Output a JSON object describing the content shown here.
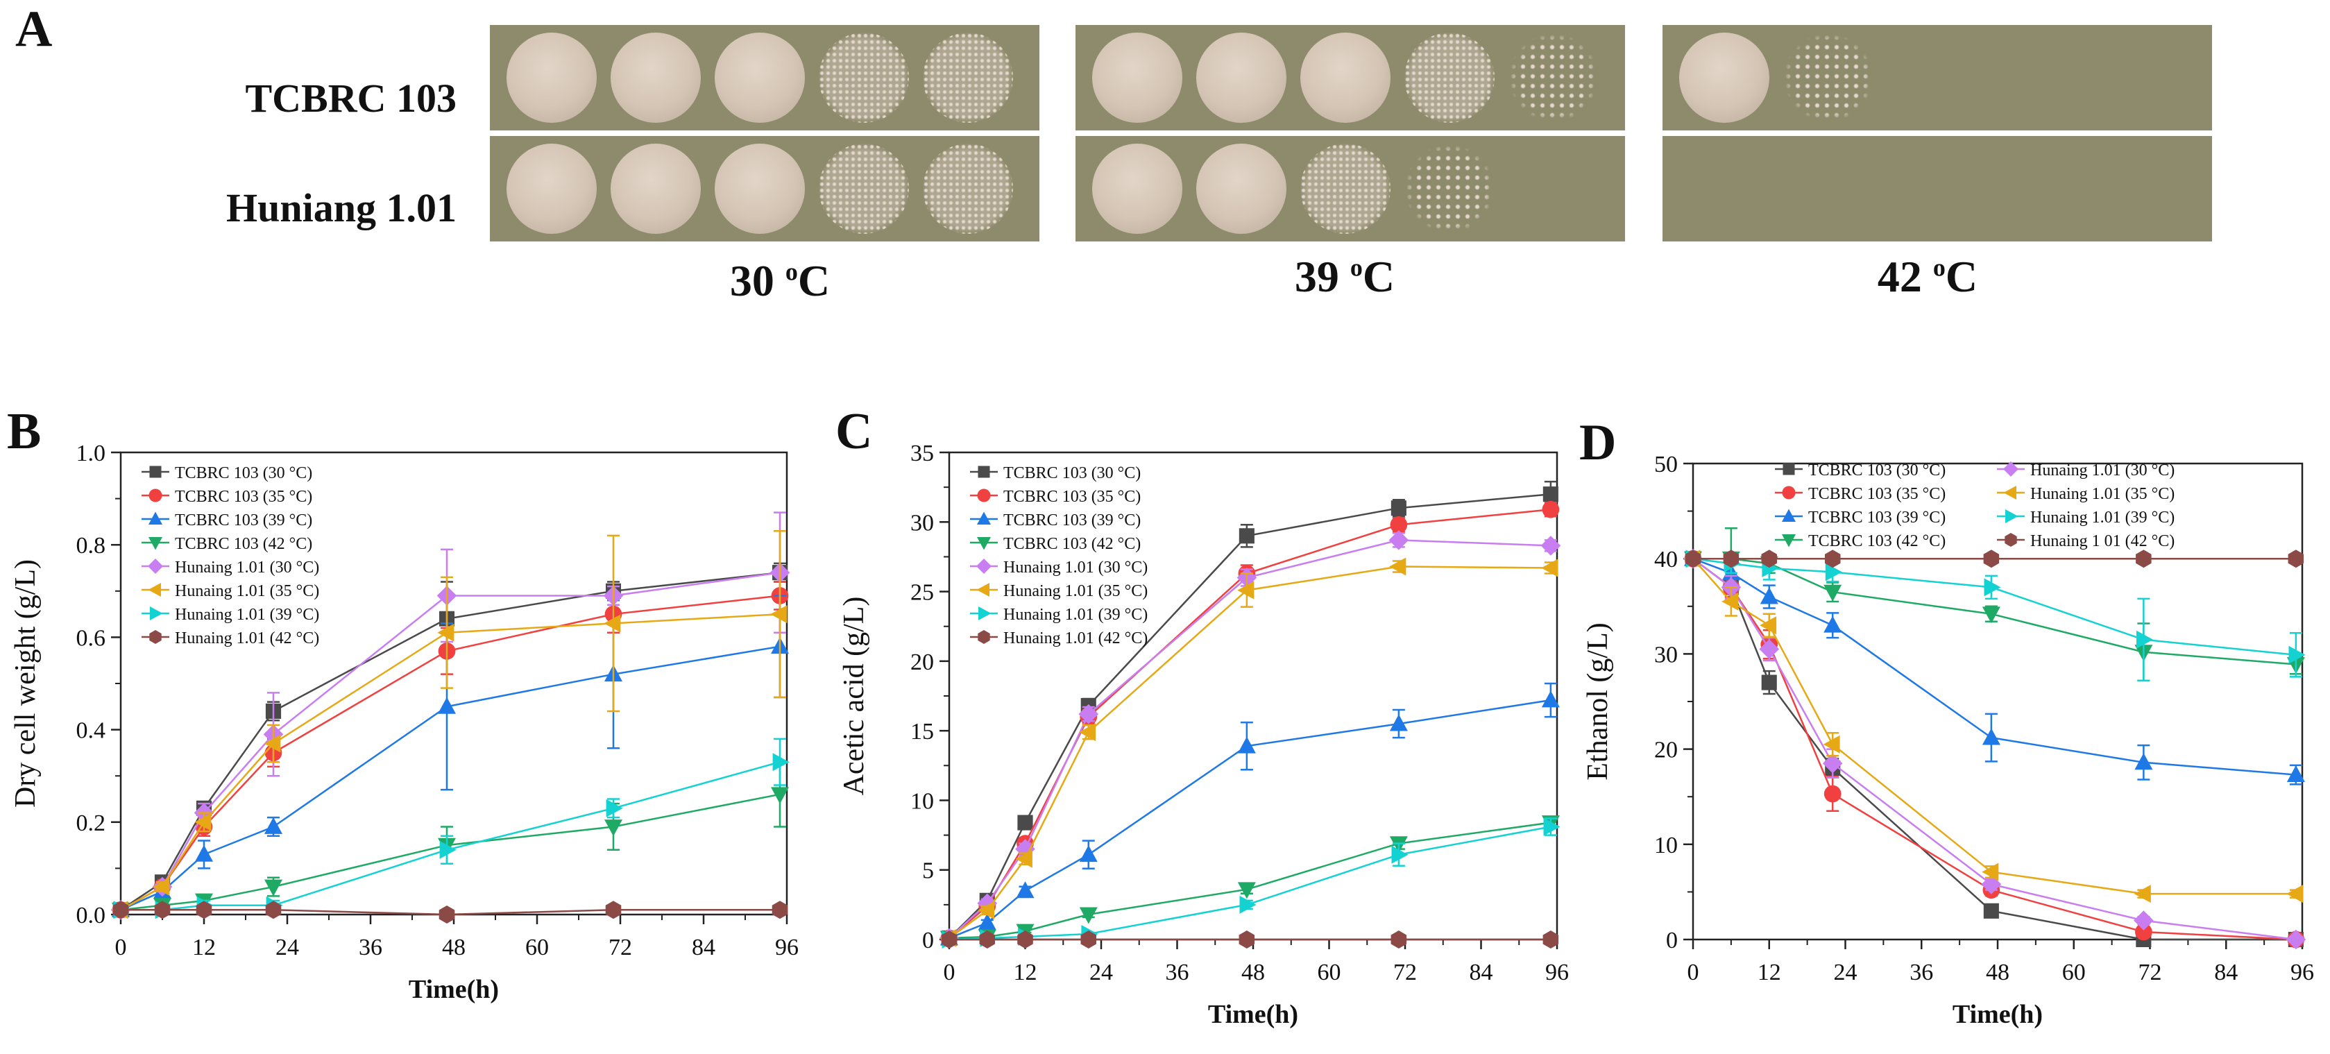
{
  "panel_a": {
    "letter": "A",
    "strains": [
      "TCBRC 103",
      "Huniang 1.01"
    ],
    "temperatures": [
      {
        "value": "30 ",
        "unit_sup": "o",
        "unit": "C"
      },
      {
        "value": "39 ",
        "unit_sup": "o",
        "unit": "C"
      },
      {
        "value": "42 ",
        "unit_sup": "o",
        "unit": "C"
      }
    ],
    "growth_levels": {
      "description_levels": "0=no growth, 1=faint, 2=sparse colonies, 3=dense colonies, 4=lawn",
      "rows": [
        [
          [
            4,
            4,
            4,
            3,
            3
          ],
          [
            4,
            4,
            4,
            3,
            2
          ],
          [
            4,
            2,
            0,
            0,
            0
          ]
        ],
        [
          [
            4,
            4,
            4,
            3,
            3
          ],
          [
            4,
            4,
            3,
            2,
            0
          ],
          [
            0,
            0,
            0,
            0,
            0
          ]
        ]
      ]
    },
    "colors": {
      "plate": "#8e8a6c",
      "lawn": "#d4c4b4",
      "colony": "#e4d9cc"
    }
  },
  "series_styles": [
    {
      "marker": "square",
      "color": "#4a4a4a"
    },
    {
      "marker": "circle",
      "color": "#f04040"
    },
    {
      "marker": "triangle-up",
      "color": "#1e78e6"
    },
    {
      "marker": "triangle-down",
      "color": "#1eaa64"
    },
    {
      "marker": "diamond",
      "color": "#c87ef0"
    },
    {
      "marker": "triangle-left",
      "color": "#e6a814"
    },
    {
      "marker": "triangle-right",
      "color": "#14d2d2"
    },
    {
      "marker": "hexagon",
      "color": "#8c4a46"
    }
  ],
  "chart_data": [
    {
      "id": "B",
      "letter": "B",
      "type": "line",
      "xlabel": "Time(h)",
      "ylabel": "Dry cell weight (g/L)",
      "xlim": [
        0,
        96
      ],
      "ylim": [
        0,
        1.0
      ],
      "xticks": [
        0,
        12,
        24,
        36,
        48,
        60,
        72,
        84,
        96
      ],
      "yticks": [
        0.0,
        0.2,
        0.4,
        0.6,
        0.8,
        1.0
      ],
      "ytick_labels": [
        "0.0",
        "0.2",
        "0.4",
        "0.6",
        "0.8",
        "1.0"
      ],
      "legend_columns": 1,
      "legend_position": "top-left",
      "x": [
        0,
        6,
        12,
        22,
        47,
        71,
        95
      ],
      "series": [
        {
          "name": "TCBRC 103 (30 °C)",
          "values": [
            0.01,
            0.07,
            0.23,
            0.44,
            0.64,
            0.7,
            0.74
          ],
          "errors": [
            0.005,
            0.01,
            0.01,
            0.02,
            0.08,
            0.02,
            0.02
          ]
        },
        {
          "name": "TCBRC 103 (35 °C)",
          "values": [
            0.01,
            0.06,
            0.19,
            0.35,
            0.57,
            0.65,
            0.69
          ],
          "errors": [
            0.005,
            0.01,
            0.02,
            0.03,
            0.05,
            0.04,
            0.03
          ]
        },
        {
          "name": "TCBRC 103 (39 °C)",
          "values": [
            0.01,
            0.05,
            0.13,
            0.19,
            0.45,
            0.52,
            0.58
          ],
          "errors": [
            0.005,
            0.01,
            0.03,
            0.02,
            0.18,
            0.16,
            0.11
          ]
        },
        {
          "name": "TCBRC 103 (42 °C)",
          "values": [
            0.01,
            0.02,
            0.03,
            0.06,
            0.15,
            0.19,
            0.26
          ],
          "errors": [
            0.005,
            0.005,
            0.01,
            0.02,
            0.04,
            0.05,
            0.07
          ]
        },
        {
          "name": "Hunaing 1.01 (30 °C)",
          "values": [
            0.01,
            0.06,
            0.22,
            0.39,
            0.69,
            0.69,
            0.74
          ],
          "errors": [
            0.005,
            0.01,
            0.02,
            0.09,
            0.1,
            0.02,
            0.13
          ]
        },
        {
          "name": "Hunaing 1.01 (35 °C)",
          "values": [
            0.01,
            0.06,
            0.2,
            0.37,
            0.61,
            0.63,
            0.65
          ],
          "errors": [
            0.005,
            0.01,
            0.02,
            0.04,
            0.12,
            0.19,
            0.18
          ]
        },
        {
          "name": "Hunaing 1.01 (39 °C)",
          "values": [
            0.01,
            0.01,
            0.02,
            0.02,
            0.14,
            0.23,
            0.33
          ],
          "errors": [
            0.003,
            0.005,
            0.01,
            0.01,
            0.03,
            0.02,
            0.05
          ]
        },
        {
          "name": "Hunaing 1.01 (42 °C)",
          "values": [
            0.01,
            0.01,
            0.01,
            0.01,
            0.0,
            0.01,
            0.01
          ],
          "errors": [
            0.003,
            0.003,
            0.003,
            0.003,
            0.003,
            0.003,
            0.003
          ]
        }
      ]
    },
    {
      "id": "C",
      "letter": "C",
      "type": "line",
      "xlabel": "Time(h)",
      "ylabel": "Acetic acid (g/L)",
      "xlim": [
        0,
        96
      ],
      "ylim": [
        0,
        35
      ],
      "xticks": [
        0,
        12,
        24,
        36,
        48,
        60,
        72,
        84,
        96
      ],
      "yticks": [
        0,
        5,
        10,
        15,
        20,
        25,
        30,
        35
      ],
      "ytick_labels": [
        "0",
        "5",
        "10",
        "15",
        "20",
        "25",
        "30",
        "35"
      ],
      "legend_columns": 1,
      "legend_position": "top-left",
      "x": [
        0,
        6,
        12,
        22,
        47,
        71,
        95
      ],
      "series": [
        {
          "name": "TCBRC 103 (30 °C)",
          "values": [
            0.1,
            2.8,
            8.4,
            16.8,
            29.0,
            31.0,
            32.0
          ],
          "errors": [
            0.1,
            0.3,
            0.4,
            0.5,
            0.8,
            0.6,
            0.9
          ]
        },
        {
          "name": "TCBRC 103 (35 °C)",
          "values": [
            0.1,
            2.4,
            6.9,
            16.0,
            26.3,
            29.8,
            30.9
          ],
          "errors": [
            0.1,
            0.3,
            0.4,
            0.5,
            0.6,
            0.5,
            0.5
          ]
        },
        {
          "name": "TCBRC 103 (39 °C)",
          "values": [
            0.1,
            1.2,
            3.5,
            6.1,
            13.9,
            15.5,
            17.2
          ],
          "errors": [
            0.1,
            0.2,
            0.3,
            1.0,
            1.7,
            1.0,
            1.2
          ]
        },
        {
          "name": "TCBRC 103 (42 °C)",
          "values": [
            0.1,
            0.2,
            0.6,
            1.8,
            3.6,
            6.9,
            8.4
          ],
          "errors": [
            0.05,
            0.1,
            0.1,
            0.2,
            0.3,
            0.4,
            0.4
          ]
        },
        {
          "name": "Hunaing 1.01 (30 °C)",
          "values": [
            0.1,
            2.6,
            6.5,
            16.2,
            26.0,
            28.7,
            28.3
          ],
          "errors": [
            0.1,
            0.3,
            0.4,
            0.5,
            0.6,
            0.5,
            0.4
          ]
        },
        {
          "name": "Hunaing 1.01 (35 °C)",
          "values": [
            0.1,
            2.1,
            5.8,
            14.9,
            25.1,
            26.8,
            26.7
          ],
          "errors": [
            0.1,
            0.3,
            0.4,
            0.5,
            1.2,
            0.4,
            0.4
          ]
        },
        {
          "name": "Hunaing 1.01 (39 °C)",
          "values": [
            0.0,
            0.1,
            0.2,
            0.4,
            2.5,
            6.1,
            8.1
          ],
          "errors": [
            0.05,
            0.05,
            0.1,
            0.1,
            0.3,
            0.8,
            0.6
          ]
        },
        {
          "name": "Hunaing 1.01 (42 °C)",
          "values": [
            0.0,
            0.0,
            0.0,
            0.0,
            0.0,
            0.0,
            0.0
          ],
          "errors": [
            0.05,
            0.05,
            0.05,
            0.05,
            0.05,
            0.05,
            0.05
          ]
        }
      ]
    },
    {
      "id": "D",
      "letter": "D",
      "type": "line",
      "xlabel": "Time(h)",
      "ylabel": "Ethanol (g/L)",
      "xlim": [
        0,
        96
      ],
      "ylim": [
        0,
        50
      ],
      "xticks": [
        0,
        12,
        24,
        36,
        48,
        60,
        72,
        84,
        96
      ],
      "yticks": [
        0,
        10,
        20,
        30,
        40,
        50
      ],
      "ytick_labels": [
        "0",
        "10",
        "20",
        "30",
        "40",
        "50"
      ],
      "legend_columns": 2,
      "legend_position": "top-center",
      "x": [
        0,
        6,
        12,
        22,
        47,
        71,
        95
      ],
      "series": [
        {
          "name": "TCBRC 103 (30 °C)",
          "values": [
            40.0,
            37.0,
            27.0,
            18.0,
            3.0,
            0.0,
            0.0
          ],
          "errors": [
            0.4,
            1.0,
            1.2,
            1.0,
            0.4,
            0.3,
            0.2
          ]
        },
        {
          "name": "TCBRC 103 (35 °C)",
          "values": [
            40.0,
            37.0,
            31.0,
            15.3,
            5.2,
            0.8,
            0.0
          ],
          "errors": [
            0.4,
            1.0,
            1.5,
            1.8,
            0.6,
            0.4,
            0.2
          ]
        },
        {
          "name": "TCBRC 103 (39 °C)",
          "values": [
            40.0,
            38.5,
            36.0,
            33.0,
            21.2,
            18.6,
            17.3
          ],
          "errors": [
            0.4,
            1.0,
            1.2,
            1.3,
            2.5,
            1.8,
            1.0
          ]
        },
        {
          "name": "TCBRC 103 (42 °C)",
          "values": [
            40.0,
            40.0,
            39.5,
            36.5,
            34.2,
            30.2,
            28.9
          ],
          "errors": [
            0.4,
            3.2,
            1.0,
            1.0,
            0.8,
            3.0,
            1.0
          ]
        },
        {
          "name": "Hunaing 1.01 (30 °C)",
          "values": [
            40.0,
            37.0,
            30.5,
            18.5,
            5.8,
            2.0,
            0.0
          ],
          "errors": [
            0.4,
            1.2,
            1.2,
            1.5,
            0.6,
            0.4,
            0.2
          ]
        },
        {
          "name": "Hunaing 1.01 (35 °C)",
          "values": [
            40.0,
            35.5,
            33.0,
            20.5,
            7.1,
            4.8,
            4.8
          ],
          "errors": [
            0.4,
            1.5,
            1.2,
            1.2,
            0.6,
            0.4,
            0.4
          ]
        },
        {
          "name": "Hunaing 1.01 (39 °C)",
          "values": [
            40.0,
            39.5,
            39.0,
            38.6,
            37.0,
            31.5,
            29.9
          ],
          "errors": [
            0.4,
            1.0,
            1.2,
            1.0,
            1.2,
            4.3,
            2.3
          ]
        },
        {
          "name": "Hunaing 1 01 (42 °C)",
          "values": [
            40.0,
            40.0,
            40.0,
            40.0,
            40.0,
            40.0,
            40.0
          ],
          "errors": [
            0.2,
            0.2,
            0.2,
            0.2,
            0.2,
            0.2,
            0.2
          ]
        }
      ]
    }
  ]
}
